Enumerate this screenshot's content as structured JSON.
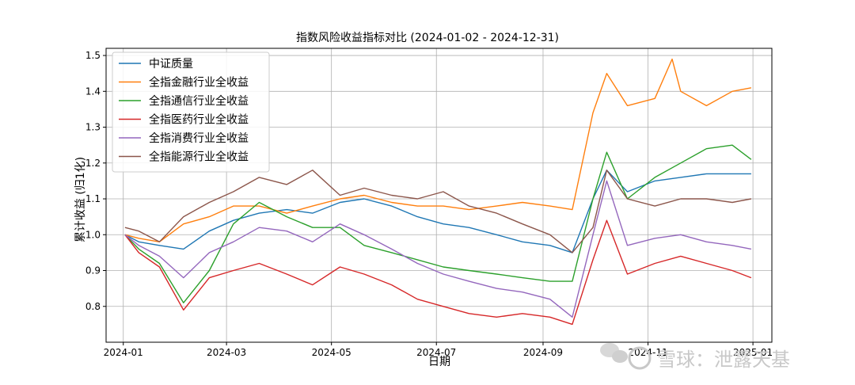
{
  "chart_data": {
    "type": "line",
    "title": "指数风险收益指标对比 (2024-01-02 - 2024-12-31)",
    "xlabel": "日期",
    "ylabel": "累计收益 (归1化)",
    "x_range": [
      "2023-12-22",
      "2025-01-12"
    ],
    "ylim": [
      0.7,
      1.52
    ],
    "yticks": [
      0.8,
      0.9,
      1.0,
      1.1,
      1.2,
      1.3,
      1.4,
      1.5
    ],
    "ytick_labels": [
      "0.8",
      "0.9",
      "1.0",
      "1.1",
      "1.2",
      "1.3",
      "1.4",
      "1.5"
    ],
    "xticks": [
      "2024-01-01",
      "2024-03-01",
      "2024-05-01",
      "2024-07-01",
      "2024-09-01",
      "2024-11-01",
      "2025-01-01"
    ],
    "xtick_labels": [
      "2024-01",
      "2024-03",
      "2024-05",
      "2024-07",
      "2024-09",
      "2024-11",
      "2025-01"
    ],
    "grid": true,
    "legend_position": "top-left",
    "series": [
      {
        "name": "中证质量",
        "color": "#1f77b4",
        "x": [
          "2024-01-02",
          "2024-01-10",
          "2024-01-22",
          "2024-02-05",
          "2024-02-20",
          "2024-03-05",
          "2024-03-20",
          "2024-04-05",
          "2024-04-20",
          "2024-05-06",
          "2024-05-20",
          "2024-06-05",
          "2024-06-20",
          "2024-07-05",
          "2024-07-20",
          "2024-08-05",
          "2024-08-20",
          "2024-09-05",
          "2024-09-18",
          "2024-09-30",
          "2024-10-08",
          "2024-10-20",
          "2024-11-05",
          "2024-11-20",
          "2024-12-05",
          "2024-12-20",
          "2024-12-31"
        ],
        "y": [
          1.0,
          0.98,
          0.97,
          0.96,
          1.01,
          1.04,
          1.06,
          1.07,
          1.06,
          1.09,
          1.1,
          1.08,
          1.05,
          1.03,
          1.02,
          1.0,
          0.98,
          0.97,
          0.95,
          1.1,
          1.18,
          1.12,
          1.15,
          1.16,
          1.17,
          1.17,
          1.17
        ]
      },
      {
        "name": "全指金融行业全收益",
        "color": "#ff7f0e",
        "x": [
          "2024-01-02",
          "2024-01-10",
          "2024-01-22",
          "2024-02-05",
          "2024-02-20",
          "2024-03-05",
          "2024-03-20",
          "2024-04-05",
          "2024-04-20",
          "2024-05-06",
          "2024-05-20",
          "2024-06-05",
          "2024-06-20",
          "2024-07-05",
          "2024-07-20",
          "2024-08-05",
          "2024-08-20",
          "2024-09-05",
          "2024-09-18",
          "2024-09-30",
          "2024-10-08",
          "2024-10-20",
          "2024-11-05",
          "2024-11-15",
          "2024-11-20",
          "2024-12-05",
          "2024-12-20",
          "2024-12-31"
        ],
        "y": [
          1.0,
          0.99,
          0.98,
          1.03,
          1.05,
          1.08,
          1.08,
          1.06,
          1.08,
          1.1,
          1.11,
          1.09,
          1.08,
          1.08,
          1.07,
          1.08,
          1.09,
          1.08,
          1.07,
          1.34,
          1.45,
          1.36,
          1.38,
          1.49,
          1.4,
          1.36,
          1.4,
          1.41
        ]
      },
      {
        "name": "全指通信行业全收益",
        "color": "#2ca02c",
        "x": [
          "2024-01-02",
          "2024-01-10",
          "2024-01-22",
          "2024-02-05",
          "2024-02-20",
          "2024-03-05",
          "2024-03-20",
          "2024-04-05",
          "2024-04-20",
          "2024-05-06",
          "2024-05-20",
          "2024-06-05",
          "2024-06-20",
          "2024-07-05",
          "2024-07-20",
          "2024-08-05",
          "2024-08-20",
          "2024-09-05",
          "2024-09-18",
          "2024-09-30",
          "2024-10-08",
          "2024-10-20",
          "2024-11-05",
          "2024-11-20",
          "2024-12-05",
          "2024-12-20",
          "2024-12-31"
        ],
        "y": [
          1.0,
          0.96,
          0.92,
          0.81,
          0.9,
          1.03,
          1.09,
          1.05,
          1.02,
          1.02,
          0.97,
          0.95,
          0.93,
          0.91,
          0.9,
          0.89,
          0.88,
          0.87,
          0.87,
          1.1,
          1.23,
          1.1,
          1.16,
          1.2,
          1.24,
          1.25,
          1.21
        ]
      },
      {
        "name": "全指医药行业全收益",
        "color": "#d62728",
        "x": [
          "2024-01-02",
          "2024-01-10",
          "2024-01-22",
          "2024-02-05",
          "2024-02-20",
          "2024-03-05",
          "2024-03-20",
          "2024-04-05",
          "2024-04-20",
          "2024-05-06",
          "2024-05-20",
          "2024-06-05",
          "2024-06-20",
          "2024-07-05",
          "2024-07-20",
          "2024-08-05",
          "2024-08-20",
          "2024-09-05",
          "2024-09-18",
          "2024-09-30",
          "2024-10-08",
          "2024-10-20",
          "2024-11-05",
          "2024-11-20",
          "2024-12-05",
          "2024-12-20",
          "2024-12-31"
        ],
        "y": [
          1.0,
          0.95,
          0.91,
          0.79,
          0.88,
          0.9,
          0.92,
          0.89,
          0.86,
          0.91,
          0.89,
          0.86,
          0.82,
          0.8,
          0.78,
          0.77,
          0.78,
          0.77,
          0.75,
          0.93,
          1.04,
          0.89,
          0.92,
          0.94,
          0.92,
          0.9,
          0.88
        ]
      },
      {
        "name": "全指消费行业全收益",
        "color": "#9467bd",
        "x": [
          "2024-01-02",
          "2024-01-10",
          "2024-01-22",
          "2024-02-05",
          "2024-02-20",
          "2024-03-05",
          "2024-03-20",
          "2024-04-05",
          "2024-04-20",
          "2024-05-06",
          "2024-05-20",
          "2024-06-05",
          "2024-06-20",
          "2024-07-05",
          "2024-07-20",
          "2024-08-05",
          "2024-08-20",
          "2024-09-05",
          "2024-09-18",
          "2024-09-30",
          "2024-10-08",
          "2024-10-20",
          "2024-11-05",
          "2024-11-20",
          "2024-12-05",
          "2024-12-20",
          "2024-12-31"
        ],
        "y": [
          1.0,
          0.97,
          0.94,
          0.88,
          0.95,
          0.98,
          1.02,
          1.01,
          0.98,
          1.03,
          1.0,
          0.96,
          0.92,
          0.89,
          0.87,
          0.85,
          0.84,
          0.82,
          0.77,
          1.0,
          1.15,
          0.97,
          0.99,
          1.0,
          0.98,
          0.97,
          0.96
        ]
      },
      {
        "name": "全指能源行业全收益",
        "color": "#8c564b",
        "x": [
          "2024-01-02",
          "2024-01-10",
          "2024-01-22",
          "2024-02-05",
          "2024-02-20",
          "2024-03-05",
          "2024-03-20",
          "2024-04-05",
          "2024-04-20",
          "2024-05-06",
          "2024-05-20",
          "2024-06-05",
          "2024-06-20",
          "2024-07-05",
          "2024-07-20",
          "2024-08-05",
          "2024-08-20",
          "2024-09-05",
          "2024-09-18",
          "2024-09-30",
          "2024-10-08",
          "2024-10-20",
          "2024-11-05",
          "2024-11-20",
          "2024-12-05",
          "2024-12-20",
          "2024-12-31"
        ],
        "y": [
          1.02,
          1.01,
          0.98,
          1.05,
          1.09,
          1.12,
          1.16,
          1.14,
          1.18,
          1.11,
          1.13,
          1.11,
          1.1,
          1.12,
          1.08,
          1.06,
          1.03,
          1.0,
          0.95,
          1.02,
          1.18,
          1.1,
          1.08,
          1.1,
          1.1,
          1.09,
          1.1
        ]
      }
    ]
  },
  "watermark": {
    "text": "雪球：泄露天基"
  }
}
